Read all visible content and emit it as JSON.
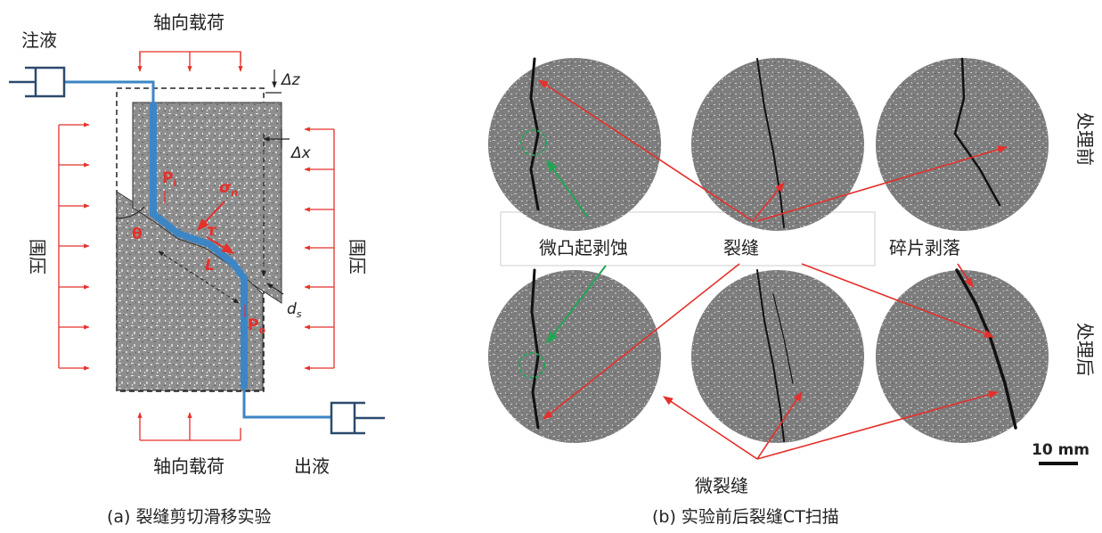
{
  "panel_a": {
    "caption": "(a) 裂缝剪切滑移实验",
    "inject_label": "注液",
    "outlet_label": "出液",
    "axial_load_top": "轴向载荷",
    "axial_load_bottom": "轴向载荷",
    "confining_left": "围压",
    "confining_right": "围压",
    "delta_z": "Δz",
    "delta_x": "Δx",
    "theta": "θ",
    "p_i": "P",
    "p_i_sub": "i",
    "p_o": "P",
    "p_o_sub": "o",
    "sigma_n": "σ",
    "sigma_n_sub": "n",
    "tau": "τ",
    "length": "L",
    "d_s": "d",
    "d_s_sub": "s"
  },
  "panel_b": {
    "caption": "(b) 实验前后裂缝CT扫描",
    "before_label": "处理前",
    "after_label": "处理后",
    "label_micro_bump": "微凸起剥蚀",
    "label_fracture": "裂缝",
    "label_fragment": "碎片剥落",
    "label_microcrack": "微裂缝",
    "scale_bar": "10 mm"
  },
  "colors": {
    "annotation_red": "#e5302b",
    "fluid_blue": "#3d86c6",
    "pump_navy": "#2c4a6e",
    "marker_green": "#23a455"
  }
}
